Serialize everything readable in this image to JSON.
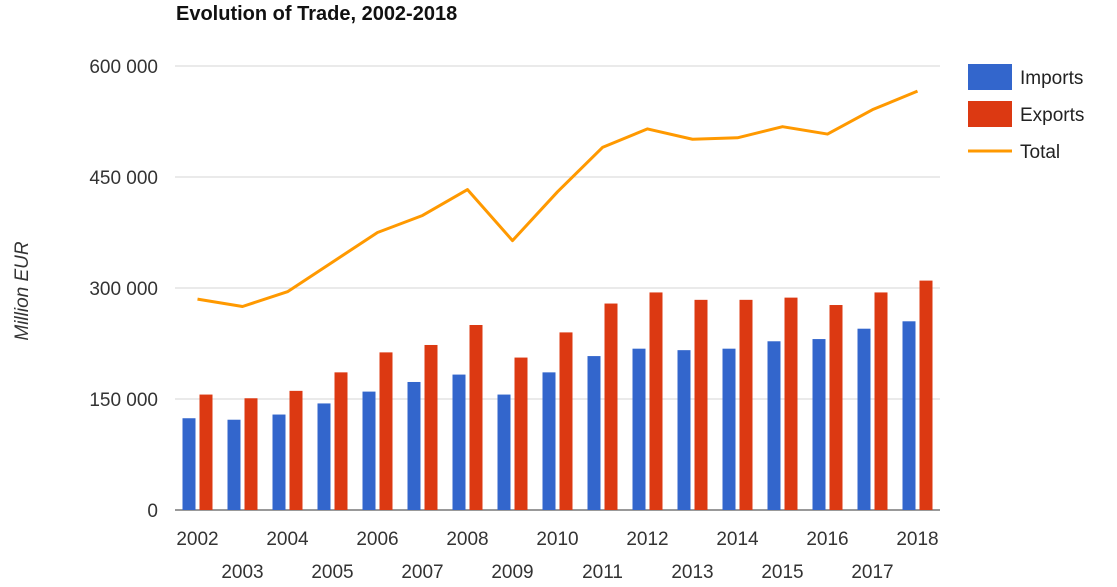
{
  "chart_data": {
    "type": "bar",
    "title": "Evolution of Trade, 2002-2018",
    "xlabel": "",
    "ylabel": "Million EUR",
    "categories": [
      "2002",
      "2003",
      "2004",
      "2005",
      "2006",
      "2007",
      "2008",
      "2009",
      "2010",
      "2011",
      "2012",
      "2013",
      "2014",
      "2015",
      "2016",
      "2017",
      "2018"
    ],
    "ylim": [
      0,
      600000
    ],
    "yticks": [
      0,
      150000,
      300000,
      450000,
      600000
    ],
    "ytick_labels": [
      "0",
      "150 000",
      "300 000",
      "450 000",
      "600 000"
    ],
    "grid": true,
    "legend_position": "right",
    "series": [
      {
        "name": "Imports",
        "type": "bar",
        "color": "#3366cc",
        "values": [
          124000,
          122000,
          129000,
          144000,
          160000,
          173000,
          183000,
          156000,
          186000,
          208000,
          218000,
          216000,
          218000,
          228000,
          231000,
          245000,
          255000
        ]
      },
      {
        "name": "Exports",
        "type": "bar",
        "color": "#dc3912",
        "values": [
          156000,
          151000,
          161000,
          186000,
          213000,
          223000,
          250000,
          206000,
          240000,
          279000,
          294000,
          284000,
          284000,
          287000,
          277000,
          294000,
          310000
        ]
      },
      {
        "name": "Total",
        "type": "line",
        "color": "#ff9900",
        "values": [
          285000,
          275000,
          295000,
          335000,
          375000,
          398000,
          433000,
          364000,
          430000,
          490000,
          515000,
          501000,
          503000,
          518000,
          508000,
          541000,
          566000
        ]
      }
    ]
  }
}
